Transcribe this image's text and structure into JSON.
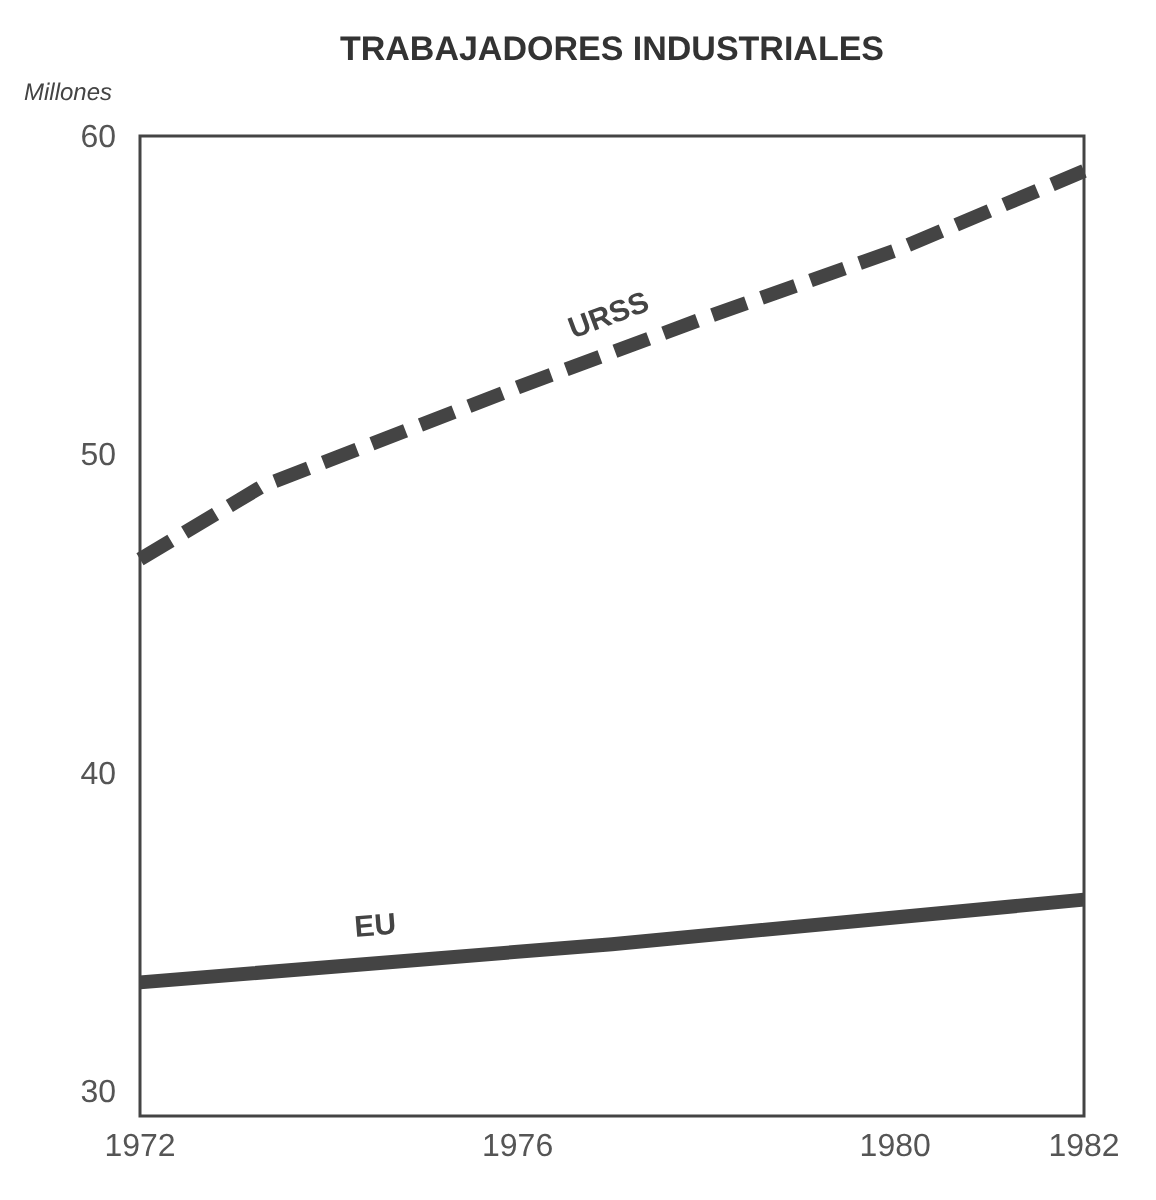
{
  "chart_data": {
    "type": "line",
    "title": "TRABAJADORES INDUSTRIALES",
    "ylabel": "Millones",
    "xlim": [
      1972,
      1982
    ],
    "xticks": [
      1972,
      1976,
      1980,
      1982
    ],
    "ylim": [
      29.2,
      60
    ],
    "yticks": [
      30,
      40,
      50,
      60
    ],
    "grid": false,
    "series": [
      {
        "name": "URSS",
        "color": "#444444",
        "line_style": "dashed",
        "x": [
          1972,
          1973.3,
          1976,
          1978,
          1980,
          1982
        ],
        "values": [
          46.7,
          49.0,
          52.1,
          54.3,
          56.4,
          58.9
        ]
      },
      {
        "name": "EU",
        "color": "#444444",
        "line_style": "solid",
        "x": [
          1972,
          1977,
          1982
        ],
        "values": [
          33.4,
          34.6,
          36.0
        ]
      }
    ]
  }
}
